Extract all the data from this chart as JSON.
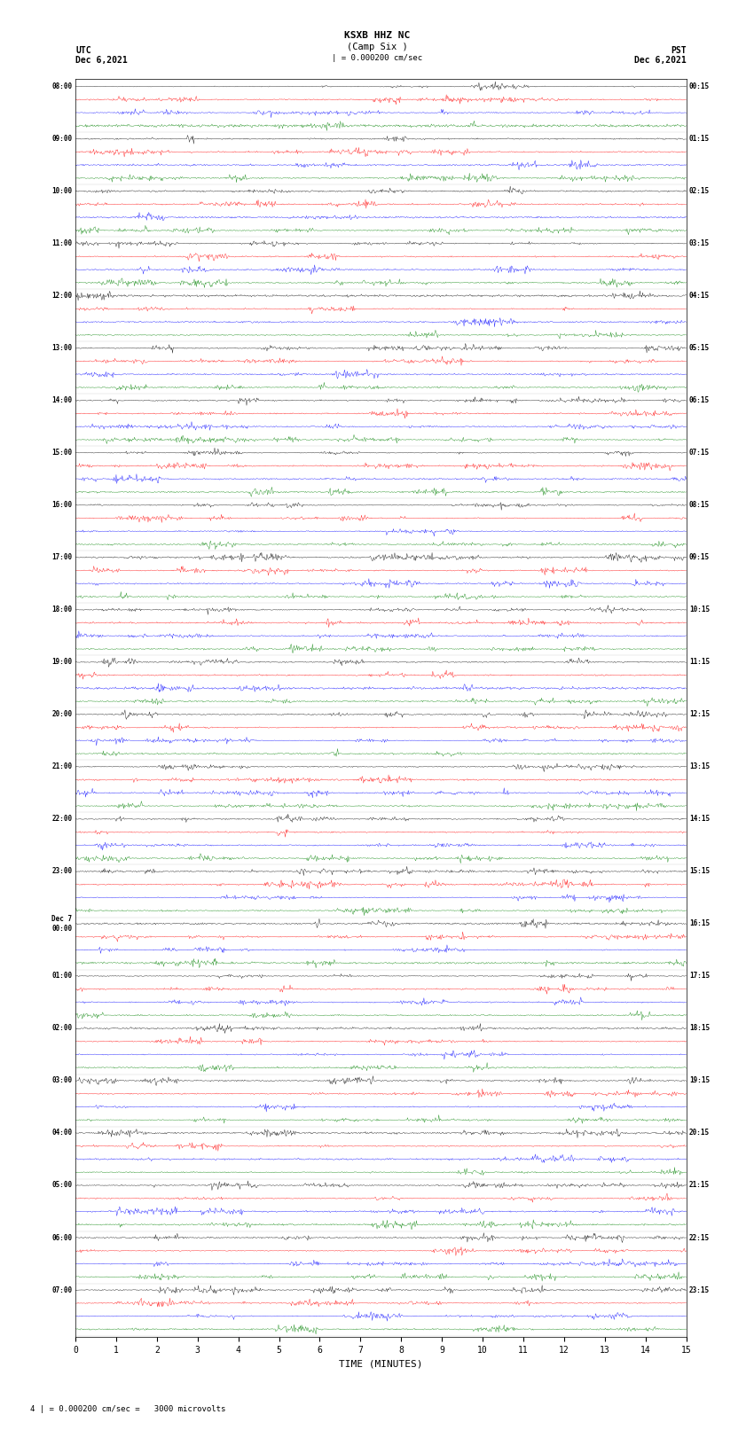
{
  "title_line1": "KSXB HHZ NC",
  "title_line2": "(Camp Six )",
  "scale_label": "| = 0.000200 cm/sec",
  "left_header": "UTC\nDec 6,2021",
  "right_header": "PST\nDec 6,2021",
  "xlabel": "TIME (MINUTES)",
  "footer": "4 | = 0.000200 cm/sec =   3000 microvolts",
  "utc_times": [
    "08:00",
    "09:00",
    "10:00",
    "11:00",
    "12:00",
    "13:00",
    "14:00",
    "15:00",
    "16:00",
    "17:00",
    "18:00",
    "19:00",
    "20:00",
    "21:00",
    "22:00",
    "23:00",
    "Dec 7\n00:00",
    "01:00",
    "02:00",
    "03:00",
    "04:00",
    "05:00",
    "06:00",
    "07:00"
  ],
  "pst_times": [
    "00:15",
    "01:15",
    "02:15",
    "03:15",
    "04:15",
    "05:15",
    "06:15",
    "07:15",
    "08:15",
    "09:15",
    "10:15",
    "11:15",
    "12:15",
    "13:15",
    "14:15",
    "15:15",
    "16:15",
    "17:15",
    "18:15",
    "19:15",
    "20:15",
    "21:15",
    "22:15",
    "23:15"
  ],
  "colors": [
    "black",
    "red",
    "blue",
    "green"
  ],
  "n_rows": 96,
  "n_points": 900,
  "x_min": 0,
  "x_max": 15,
  "xticks": [
    0,
    1,
    2,
    3,
    4,
    5,
    6,
    7,
    8,
    9,
    10,
    11,
    12,
    13,
    14,
    15
  ],
  "bg_color": "white",
  "trace_amplitude": 0.38,
  "fig_width": 8.5,
  "fig_height": 16.13,
  "dpi": 100
}
